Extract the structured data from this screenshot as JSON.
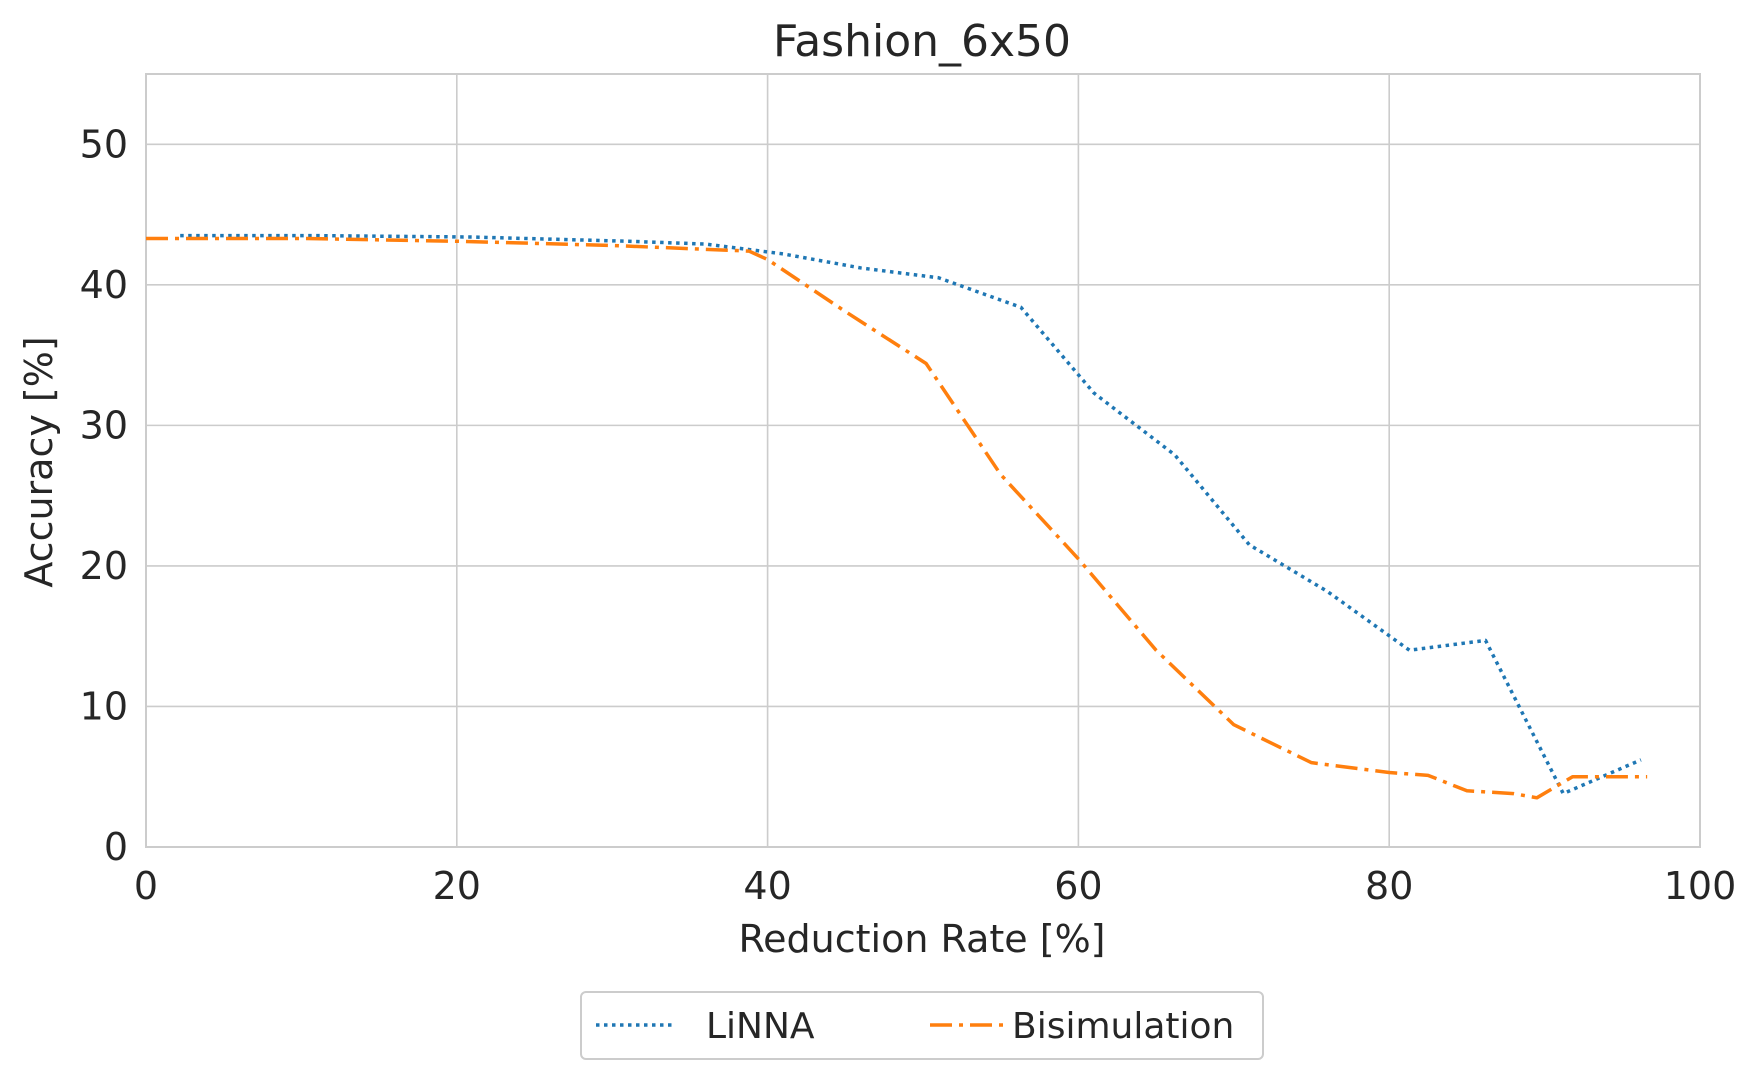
{
  "chart_data": {
    "type": "line",
    "title": "Fashion_6x50",
    "xlabel": "Reduction Rate [%]",
    "ylabel": "Accuracy [%]",
    "xlim": [
      0,
      100
    ],
    "ylim": [
      0,
      55
    ],
    "xticks": [
      0,
      20,
      40,
      60,
      80,
      100
    ],
    "yticks": [
      0,
      10,
      20,
      30,
      40,
      50
    ],
    "grid": true,
    "legend_position": "bottom-center-outside",
    "series": [
      {
        "name": "LiNNA",
        "color": "#1f77b4",
        "style": "dotted",
        "x": [
          2.2,
          11,
          21,
          31,
          36,
          41,
          46,
          51,
          56.3,
          61,
          66.2,
          71,
          76,
          81.3,
          86.2,
          91.2,
          96.2
        ],
        "y": [
          43.5,
          43.5,
          43.4,
          43.1,
          42.9,
          42.2,
          41.2,
          40.5,
          38.4,
          32.3,
          27.9,
          21.5,
          18.2,
          14,
          14.7,
          3.8,
          6.2
        ]
      },
      {
        "name": "Bisimulation",
        "color": "#ff7f0e",
        "style": "dashdot",
        "x": [
          0,
          10,
          20,
          30,
          38.8,
          40,
          45,
          50.2,
          55,
          60,
          65,
          70,
          75,
          80,
          82.5,
          85,
          88,
          89.5,
          91.8,
          93.5,
          96.6
        ],
        "y": [
          43.3,
          43.3,
          43.1,
          42.8,
          42.4,
          41.8,
          38.1,
          34.4,
          26.5,
          20.5,
          14,
          8.7,
          6,
          5.3,
          5.1,
          4,
          3.8,
          3.5,
          5,
          5,
          5
        ]
      }
    ]
  }
}
